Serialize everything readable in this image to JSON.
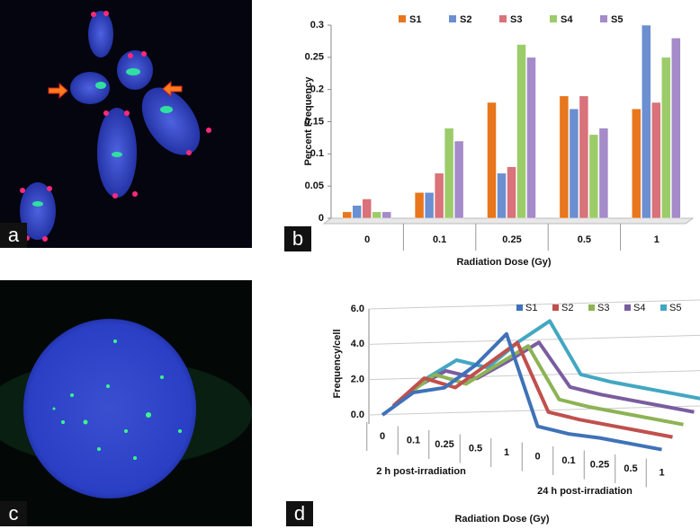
{
  "panels": [
    "a",
    "b",
    "c",
    "d"
  ],
  "chart_data": [
    {
      "type": "bar",
      "x_label": "Radiation Dose (Gy)",
      "y_label": "Percent Frequency",
      "categories": [
        "0",
        "0.1",
        "0.25",
        "0.5",
        "1"
      ],
      "series": [
        {
          "name": "S1",
          "color": "#e8761c",
          "values": [
            0.01,
            0.04,
            0.18,
            0.19,
            0.17
          ]
        },
        {
          "name": "S2",
          "color": "#6b8fd0",
          "values": [
            0.02,
            0.04,
            0.07,
            0.17,
            0.3
          ]
        },
        {
          "name": "S3",
          "color": "#d9727a",
          "values": [
            0.03,
            0.07,
            0.08,
            0.19,
            0.18
          ]
        },
        {
          "name": "S4",
          "color": "#9ccc6a",
          "values": [
            0.01,
            0.14,
            0.27,
            0.13,
            0.25
          ]
        },
        {
          "name": "S5",
          "color": "#a58bc9",
          "values": [
            0.01,
            0.12,
            0.25,
            0.14,
            0.28
          ]
        }
      ],
      "ylim": [
        0,
        0.3
      ],
      "yticks": [
        0,
        0.05,
        0.1,
        0.15,
        0.2,
        0.25,
        0.3
      ],
      "legend": "top"
    },
    {
      "type": "line",
      "x_label": "Radiation Dose (Gy)",
      "y_label": "Frequency/cell",
      "groups": [
        "2 h post-irradiation",
        "24 h post-irradiation"
      ],
      "categories": [
        "0",
        "0.1",
        "0.25",
        "0.5",
        "1",
        "0",
        "0.1",
        "0.25",
        "0.5",
        "1"
      ],
      "series": [
        {
          "name": "S1",
          "color": "#3f72b8",
          "values": [
            0,
            1.5,
            2,
            3.5,
            5.5,
            0.5,
            0.3,
            0.3,
            0.2,
            0.1
          ]
        },
        {
          "name": "S2",
          "color": "#c0504d",
          "values": [
            0,
            1.8,
            1.5,
            3,
            4.5,
            0.8,
            0.6,
            0.5,
            0.4,
            0.3
          ]
        },
        {
          "name": "S3",
          "color": "#8db355",
          "values": [
            0,
            1.5,
            1.2,
            2.5,
            3.8,
            1,
            0.8,
            0.7,
            0.6,
            0.5
          ]
        },
        {
          "name": "S4",
          "color": "#7a5d9f",
          "values": [
            0,
            1.2,
            1,
            2.2,
            3.5,
            1.2,
            1,
            0.9,
            0.8,
            0.7
          ]
        },
        {
          "name": "S5",
          "color": "#43a7c2",
          "values": [
            0,
            1.3,
            1.1,
            2.8,
            4.2,
            1.4,
            1.2,
            1.1,
            1,
            0.9
          ]
        }
      ],
      "ylim": [
        0,
        6
      ],
      "yticks": [
        {
          "value": 0,
          "label": "0.0"
        },
        {
          "value": 2,
          "label": "2.0"
        },
        {
          "value": 4,
          "label": "4.0"
        },
        {
          "value": 6,
          "label": "6.0"
        }
      ],
      "legend": "top"
    }
  ]
}
